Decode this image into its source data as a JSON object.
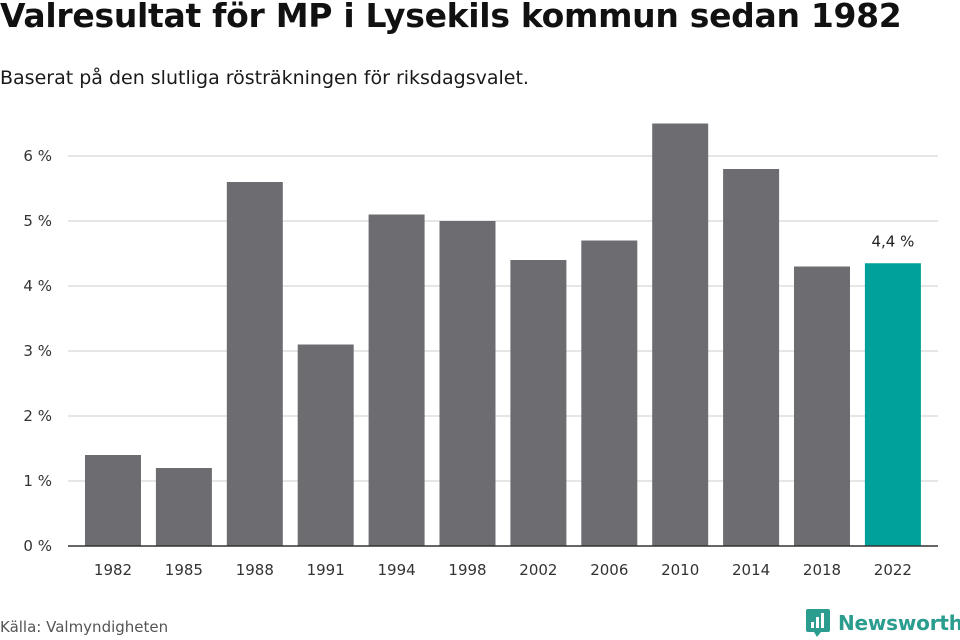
{
  "page": {
    "title": "Valresultat för MP i Lysekils kommun sedan 1982",
    "subtitle": "Baserat på den slutliga rösträkningen för riksdagsvalet.",
    "source": "Källa: Valmyndigheten",
    "brand": "Newsworthy",
    "brand_icon": "newsworthy-logo-icon"
  },
  "colors": {
    "bar": "#6d6c71",
    "highlight": "#00a19a",
    "grid": "#dddddd",
    "axis": "#333333"
  },
  "chart_data": {
    "type": "bar",
    "title": "Valresultat för MP i Lysekils kommun sedan 1982",
    "subtitle": "Baserat på den slutliga rösträkningen för riksdagsvalet.",
    "xlabel": "",
    "ylabel": "",
    "categories": [
      "1982",
      "1985",
      "1988",
      "1991",
      "1994",
      "1998",
      "2002",
      "2006",
      "2010",
      "2014",
      "2018",
      "2022"
    ],
    "values": [
      1.4,
      1.2,
      5.6,
      3.1,
      5.1,
      5.0,
      4.4,
      4.7,
      6.5,
      5.8,
      4.3,
      4.35
    ],
    "ylim": [
      0,
      6
    ],
    "yticks": [
      0,
      1,
      2,
      3,
      4,
      5,
      6
    ],
    "ytick_labels": [
      "0 %",
      "1 %",
      "2 %",
      "3 %",
      "4 %",
      "5 %",
      "6 %"
    ],
    "highlight_index": 11,
    "annotations": [
      {
        "category": "2022",
        "text": "4,4 %"
      }
    ],
    "grid": true,
    "legend": "none"
  }
}
